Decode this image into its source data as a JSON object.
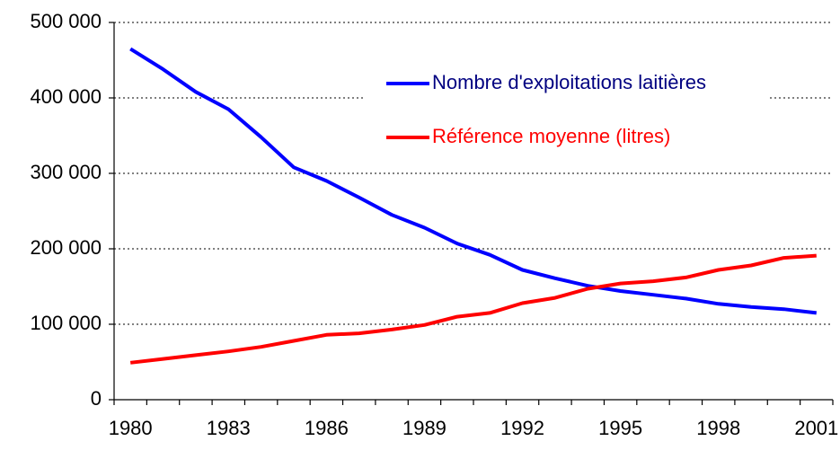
{
  "chart_data": {
    "type": "line",
    "categories": [
      "1980",
      null,
      null,
      "1983",
      null,
      null,
      "1986",
      null,
      null,
      "1989",
      null,
      null,
      "1992",
      null,
      null,
      "1995",
      null,
      null,
      "1998",
      null,
      null,
      "2001"
    ],
    "series": [
      {
        "name": "Nombre d'exploitations laitières",
        "color": "#0000ff",
        "values": [
          465000,
          438000,
          408000,
          385000,
          348000,
          308000,
          290000,
          268000,
          245000,
          228000,
          207000,
          192000,
          172000,
          161000,
          151000,
          144000,
          139000,
          134000,
          127000,
          123000,
          120000,
          115000
        ]
      },
      {
        "name": "Référence moyenne (litres)",
        "color": "#ff0000",
        "values": [
          49000,
          54000,
          59000,
          64000,
          70000,
          78000,
          86000,
          88000,
          93000,
          99000,
          110000,
          115000,
          128000,
          135000,
          147000,
          154000,
          157000,
          162000,
          172000,
          178000,
          188000,
          191000
        ]
      }
    ],
    "ylim": [
      0,
      500000
    ],
    "yticks": [
      0,
      {
        "value": 100000,
        "label": "100 000"
      },
      {
        "value": 200000,
        "label": "200 000"
      },
      {
        "value": 300000,
        "label": "300 000"
      },
      {
        "value": 400000,
        "label": "400 000"
      },
      {
        "value": 500000,
        "label": "500 000"
      }
    ],
    "grid": true
  }
}
